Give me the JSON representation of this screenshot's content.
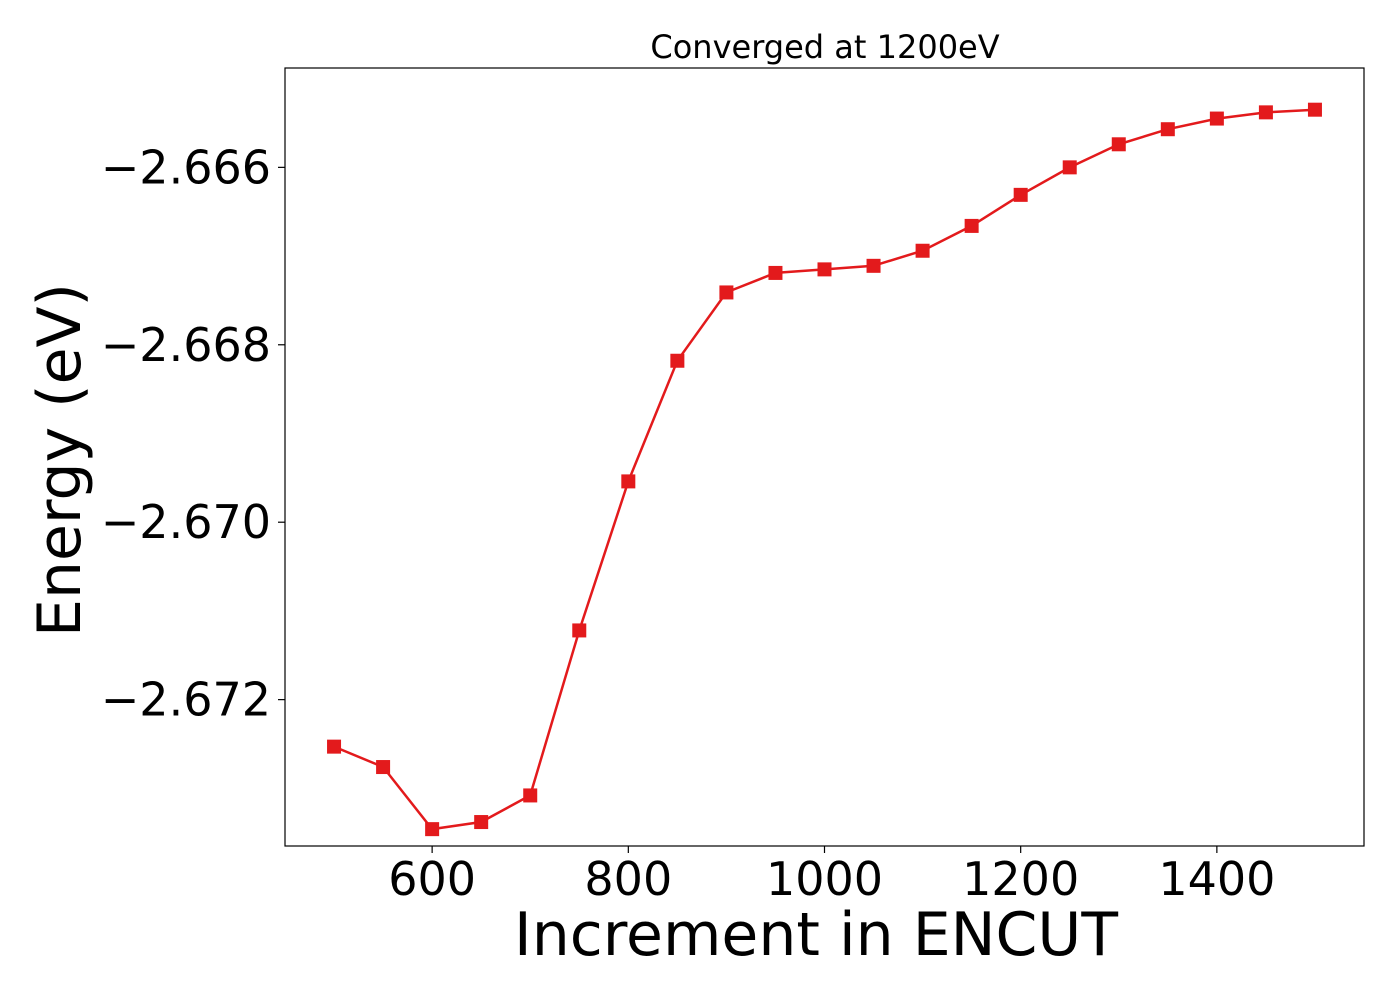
{
  "chart_data": {
    "type": "line",
    "title": "Converged at 1200eV",
    "xlabel": "Increment in ENCUT",
    "ylabel": "Energy (eV)",
    "xlim": [
      450,
      1550
    ],
    "ylim": [
      -2.67365,
      -2.66488
    ],
    "x_ticks": [
      600,
      800,
      1000,
      1200,
      1400
    ],
    "x_tick_labels": [
      "600",
      "800",
      "1000",
      "1200",
      "1400"
    ],
    "y_ticks": [
      -2.666,
      -2.668,
      -2.67,
      -2.672
    ],
    "y_tick_labels": [
      "−2.666",
      "−2.668",
      "−2.670",
      "−2.672"
    ],
    "grid": false,
    "series": [
      {
        "color": "#e31a1c",
        "marker": "square",
        "x": [
          500,
          550,
          600,
          650,
          700,
          750,
          800,
          850,
          900,
          950,
          1000,
          1050,
          1100,
          1150,
          1200,
          1250,
          1300,
          1350,
          1400,
          1450,
          1500
        ],
        "y": [
          -2.67253,
          -2.67276,
          -2.67346,
          -2.67338,
          -2.67308,
          -2.67122,
          -2.66954,
          -2.66818,
          -2.66741,
          -2.66719,
          -2.66715,
          -2.66711,
          -2.66694,
          -2.66666,
          -2.66631,
          -2.666,
          -2.66574,
          -2.66557,
          -2.66545,
          -2.66538,
          -2.66535
        ]
      }
    ]
  }
}
